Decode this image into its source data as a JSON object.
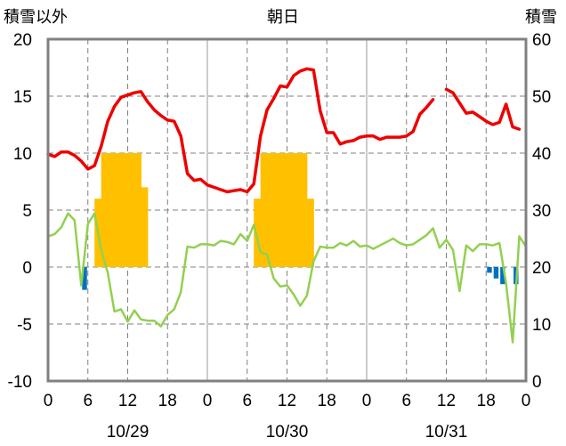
{
  "chart_data": {
    "type": "bar+line",
    "title": "朝日",
    "left_axis_label": "積雪以外",
    "right_axis_label": "積雪",
    "y_left": {
      "min": -10,
      "max": 20,
      "ticks": [
        "20",
        "15",
        "10",
        "5",
        "0",
        "-5",
        "-10"
      ]
    },
    "y_right": {
      "min": 0,
      "max": 60,
      "ticks": [
        "60",
        "50",
        "40",
        "30",
        "20",
        "10",
        "0"
      ]
    },
    "x": {
      "min": 0,
      "max": 72,
      "unit": "hours"
    },
    "x_tick_labels": [
      "0",
      "6",
      "12",
      "18",
      "0",
      "6",
      "12",
      "18",
      "0",
      "6",
      "12",
      "18",
      "0"
    ],
    "date_labels": [
      "10/29",
      "10/30",
      "10/31"
    ],
    "grid": true,
    "series": [
      {
        "key": "red_line",
        "color": "#ee0000",
        "axis": "left",
        "segments": [
          [
            [
              0,
              9.9
            ],
            [
              1,
              9.7
            ],
            [
              2,
              10.1
            ],
            [
              3,
              10.1
            ],
            [
              4,
              9.8
            ],
            [
              5,
              9.3
            ],
            [
              6,
              8.6
            ],
            [
              7,
              8.9
            ],
            [
              8,
              10.6
            ],
            [
              9,
              12.8
            ],
            [
              10,
              14.1
            ],
            [
              11,
              14.9
            ],
            [
              12,
              15.1
            ],
            [
              13,
              15.3
            ],
            [
              14,
              15.4
            ],
            [
              15,
              14.5
            ],
            [
              16,
              13.8
            ],
            [
              17,
              13.3
            ],
            [
              18,
              12.9
            ],
            [
              19,
              12.8
            ],
            [
              20,
              11.5
            ],
            [
              21,
              8.2
            ],
            [
              22,
              7.6
            ],
            [
              23,
              7.7
            ],
            [
              24,
              7.2
            ],
            [
              25,
              7.0
            ],
            [
              26,
              6.8
            ],
            [
              27,
              6.6
            ],
            [
              28,
              6.7
            ],
            [
              29,
              6.8
            ],
            [
              30,
              6.6
            ],
            [
              31,
              7.3
            ],
            [
              32,
              11.5
            ],
            [
              33,
              13.8
            ],
            [
              34,
              14.8
            ],
            [
              35,
              15.9
            ],
            [
              36,
              15.8
            ],
            [
              37,
              16.8
            ],
            [
              38,
              17.2
            ],
            [
              39,
              17.4
            ],
            [
              40,
              17.3
            ],
            [
              41,
              13.7
            ],
            [
              42,
              11.8
            ],
            [
              43,
              11.8
            ],
            [
              44,
              10.8
            ],
            [
              45,
              11.0
            ],
            [
              46,
              11.1
            ],
            [
              47,
              11.4
            ],
            [
              48,
              11.5
            ],
            [
              49,
              11.5
            ],
            [
              50,
              11.2
            ],
            [
              51,
              11.4
            ],
            [
              52,
              11.4
            ],
            [
              53,
              11.4
            ],
            [
              54,
              11.5
            ],
            [
              55,
              11.9
            ],
            [
              56,
              13.4
            ],
            [
              57,
              14.0
            ],
            [
              58,
              14.7
            ]
          ],
          [
            [
              60,
              15.6
            ],
            [
              61,
              15.3
            ],
            [
              62,
              14.4
            ],
            [
              63,
              13.5
            ],
            [
              64,
              13.6
            ],
            [
              65,
              13.2
            ],
            [
              66,
              12.8
            ],
            [
              67,
              12.5
            ],
            [
              68,
              12.7
            ],
            [
              69,
              14.3
            ],
            [
              70,
              12.3
            ],
            [
              71,
              12.1
            ]
          ]
        ]
      },
      {
        "key": "green_line",
        "color": "#92d050",
        "axis": "left",
        "segments": [
          [
            [
              0,
              2.7
            ],
            [
              1,
              2.9
            ],
            [
              2,
              3.5
            ],
            [
              3,
              4.7
            ],
            [
              4,
              4.1
            ],
            [
              5,
              -1.6
            ],
            [
              6,
              3.8
            ],
            [
              7,
              4.7
            ],
            [
              8,
              1.5
            ],
            [
              9,
              -0.5
            ],
            [
              10,
              -3.9
            ],
            [
              11,
              -3.7
            ],
            [
              12,
              -4.8
            ],
            [
              13,
              -3.8
            ],
            [
              14,
              -4.6
            ],
            [
              15,
              -4.7
            ],
            [
              16,
              -4.7
            ],
            [
              17,
              -5.2
            ],
            [
              18,
              -4.2
            ],
            [
              19,
              -3.7
            ],
            [
              20,
              -2.2
            ],
            [
              21,
              1.8
            ],
            [
              22,
              1.7
            ],
            [
              23,
              2.0
            ],
            [
              24,
              2.0
            ],
            [
              25,
              1.9
            ],
            [
              26,
              2.3
            ],
            [
              27,
              2.2
            ],
            [
              28,
              2.0
            ],
            [
              29,
              2.9
            ],
            [
              30,
              2.3
            ],
            [
              31,
              3.7
            ],
            [
              32,
              1.3
            ],
            [
              33,
              1.1
            ],
            [
              34,
              -1.0
            ],
            [
              35,
              -1.7
            ],
            [
              36,
              -1.6
            ],
            [
              37,
              -2.4
            ],
            [
              38,
              -3.4
            ],
            [
              39,
              -2.5
            ],
            [
              40,
              0.5
            ],
            [
              41,
              1.8
            ],
            [
              42,
              1.7
            ],
            [
              43,
              1.7
            ],
            [
              44,
              2.1
            ],
            [
              45,
              1.9
            ],
            [
              46,
              2.3
            ],
            [
              47,
              1.8
            ],
            [
              48,
              1.9
            ],
            [
              49,
              1.6
            ],
            [
              50,
              1.9
            ],
            [
              51,
              2.2
            ],
            [
              52,
              2.5
            ],
            [
              53,
              2.1
            ],
            [
              54,
              1.9
            ],
            [
              55,
              2.0
            ],
            [
              56,
              2.4
            ],
            [
              57,
              2.8
            ],
            [
              58,
              3.4
            ],
            [
              59,
              1.7
            ],
            [
              60,
              2.4
            ],
            [
              61,
              1.5
            ],
            [
              62,
              -2.1
            ],
            [
              63,
              1.9
            ],
            [
              64,
              1.4
            ],
            [
              65,
              2.0
            ],
            [
              66,
              2.0
            ],
            [
              67,
              1.9
            ],
            [
              68,
              2.1
            ],
            [
              69,
              -1.4
            ],
            [
              70,
              -6.6
            ],
            [
              71,
              2.7
            ],
            [
              72,
              1.8
            ]
          ]
        ]
      }
    ],
    "bar_series": [
      {
        "key": "orange_bars",
        "color": "#ffc000",
        "axis": "right",
        "values": [
          [
            7.5,
            32
          ],
          [
            8.5,
            40
          ],
          [
            9.5,
            40
          ],
          [
            10.5,
            40
          ],
          [
            11.5,
            40
          ],
          [
            12.5,
            40
          ],
          [
            13.5,
            40
          ],
          [
            14.5,
            34
          ],
          [
            31.5,
            32
          ],
          [
            32.5,
            40
          ],
          [
            33.5,
            40
          ],
          [
            34.5,
            40
          ],
          [
            35.5,
            40
          ],
          [
            36.5,
            40
          ],
          [
            37.5,
            40
          ],
          [
            38.5,
            40
          ],
          [
            39.5,
            32
          ]
        ]
      },
      {
        "key": "blue_bars",
        "color": "#0070c0",
        "axis": "left",
        "values": [
          [
            5.5,
            -2
          ],
          [
            66.5,
            -0.5
          ],
          [
            67.5,
            -1
          ],
          [
            68.5,
            -1.5
          ],
          [
            70.5,
            -1.5
          ]
        ]
      }
    ]
  }
}
